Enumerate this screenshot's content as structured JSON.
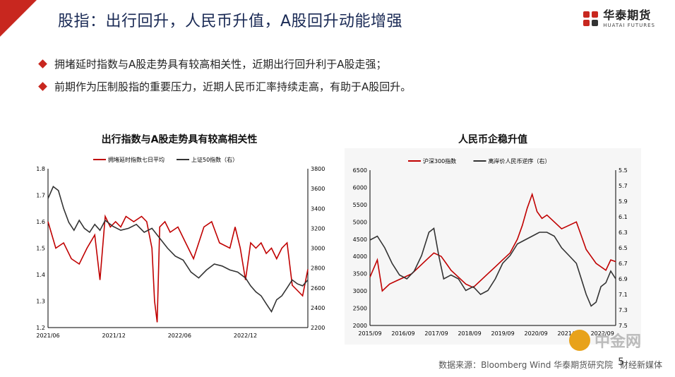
{
  "header": {
    "title": "股指：出行回升，人民币升值，A股回升动能增强",
    "logo_cn": "华泰期货",
    "logo_en": "HUATAI FUTURES"
  },
  "bullets": [
    "拥堵延时指数与A股走势具有较高相关性，近期出行回升利于A股走强；",
    "前期作为压制股指的重要压力，近期人民币汇率持续走高，有助于A股回升。"
  ],
  "chart_data": [
    {
      "type": "line",
      "title": "出行指数与A股走势具有较高相关性",
      "legend_position": "top",
      "x_ticks": [
        "2021/06",
        "2021/12",
        "2022/06",
        "2022/12"
      ],
      "y_left": {
        "ticks": [
          "1.8",
          "1.7",
          "1.6",
          "1.5",
          "1.4",
          "1.3",
          "1.2"
        ],
        "range": [
          1.2,
          1.8
        ]
      },
      "y_right": {
        "ticks": [
          "3800",
          "3600",
          "3400",
          "3200",
          "3000",
          "2800",
          "2600",
          "2400",
          "2200"
        ],
        "range": [
          2200,
          3800
        ]
      },
      "series": [
        {
          "name": "拥堵延时指数七日平均",
          "axis": "left",
          "color": "#c00000",
          "x": [
            0,
            0.03,
            0.06,
            0.09,
            0.12,
            0.15,
            0.18,
            0.2,
            0.22,
            0.24,
            0.26,
            0.28,
            0.3,
            0.33,
            0.36,
            0.38,
            0.4,
            0.41,
            0.42,
            0.43,
            0.45,
            0.47,
            0.5,
            0.53,
            0.56,
            0.6,
            0.63,
            0.66,
            0.7,
            0.72,
            0.74,
            0.76,
            0.78,
            0.8,
            0.82,
            0.84,
            0.86,
            0.88,
            0.9,
            0.92,
            0.94,
            0.96,
            0.98,
            1.0
          ],
          "values": [
            1.6,
            1.5,
            1.52,
            1.46,
            1.44,
            1.5,
            1.55,
            1.38,
            1.62,
            1.58,
            1.6,
            1.58,
            1.62,
            1.6,
            1.62,
            1.6,
            1.5,
            1.3,
            1.22,
            1.58,
            1.6,
            1.56,
            1.58,
            1.52,
            1.46,
            1.58,
            1.6,
            1.52,
            1.5,
            1.58,
            1.5,
            1.38,
            1.52,
            1.5,
            1.52,
            1.48,
            1.5,
            1.46,
            1.5,
            1.52,
            1.36,
            1.34,
            1.32,
            1.42
          ]
        },
        {
          "name": "上证50指数（右）",
          "axis": "right",
          "color": "#333333",
          "x": [
            0,
            0.02,
            0.04,
            0.06,
            0.08,
            0.1,
            0.12,
            0.14,
            0.16,
            0.18,
            0.2,
            0.22,
            0.25,
            0.28,
            0.31,
            0.34,
            0.37,
            0.4,
            0.43,
            0.46,
            0.49,
            0.52,
            0.55,
            0.58,
            0.61,
            0.64,
            0.67,
            0.7,
            0.73,
            0.76,
            0.78,
            0.8,
            0.82,
            0.84,
            0.86,
            0.88,
            0.9,
            0.92,
            0.94,
            0.96,
            0.98,
            1.0
          ],
          "values": [
            3500,
            3620,
            3580,
            3400,
            3260,
            3180,
            3280,
            3200,
            3160,
            3240,
            3180,
            3280,
            3220,
            3180,
            3200,
            3240,
            3160,
            3200,
            3100,
            3000,
            2920,
            2880,
            2760,
            2700,
            2780,
            2840,
            2820,
            2780,
            2760,
            2700,
            2620,
            2560,
            2520,
            2440,
            2360,
            2480,
            2520,
            2600,
            2680,
            2640,
            2620,
            2680
          ]
        }
      ]
    },
    {
      "type": "line",
      "title": "人民币企稳升值",
      "legend_position": "top",
      "x_ticks": [
        "2015/09",
        "2016/09",
        "2017/09",
        "2018/09",
        "2019/09",
        "2020/09",
        "2021/09",
        "2022/09"
      ],
      "y_left": {
        "ticks": [
          "6500",
          "6000",
          "5500",
          "5000",
          "4500",
          "4000",
          "3500",
          "3000",
          "2500",
          "2000"
        ],
        "range": [
          2000,
          6500
        ]
      },
      "y_right": {
        "ticks": [
          "5.5",
          "5.7",
          "5.9",
          "6.1",
          "6.3",
          "6.5",
          "6.7",
          "6.9",
          "7.1",
          "7.3",
          "7.5"
        ],
        "range": [
          5.5,
          7.5
        ]
      },
      "series": [
        {
          "name": "沪深300指数",
          "axis": "left",
          "color": "#c00000",
          "x": [
            0,
            0.03,
            0.05,
            0.08,
            0.11,
            0.14,
            0.17,
            0.2,
            0.23,
            0.26,
            0.29,
            0.31,
            0.33,
            0.36,
            0.39,
            0.42,
            0.45,
            0.48,
            0.51,
            0.54,
            0.57,
            0.6,
            0.62,
            0.64,
            0.66,
            0.68,
            0.7,
            0.72,
            0.75,
            0.78,
            0.81,
            0.84,
            0.86,
            0.88,
            0.9,
            0.92,
            0.94,
            0.96,
            0.98,
            1.0
          ],
          "values": [
            3400,
            3900,
            3000,
            3200,
            3300,
            3400,
            3500,
            3700,
            3900,
            4100,
            4000,
            3800,
            3600,
            3400,
            3200,
            3100,
            3300,
            3500,
            3700,
            3900,
            4100,
            4500,
            4900,
            5400,
            5800,
            5300,
            5100,
            5200,
            5000,
            4800,
            4900,
            5000,
            4600,
            4200,
            4000,
            3800,
            3700,
            3600,
            3900,
            3850
          ]
        },
        {
          "name": "离岸价人民币逆序（右）",
          "axis": "right",
          "color": "#333333",
          "x": [
            0,
            0.03,
            0.06,
            0.09,
            0.12,
            0.15,
            0.18,
            0.21,
            0.24,
            0.26,
            0.28,
            0.3,
            0.33,
            0.36,
            0.39,
            0.42,
            0.45,
            0.48,
            0.51,
            0.54,
            0.57,
            0.6,
            0.63,
            0.66,
            0.69,
            0.72,
            0.75,
            0.78,
            0.81,
            0.84,
            0.86,
            0.88,
            0.9,
            0.92,
            0.94,
            0.96,
            0.98,
            1.0
          ],
          "values": [
            6.4,
            6.35,
            6.5,
            6.7,
            6.85,
            6.9,
            6.8,
            6.6,
            6.3,
            6.25,
            6.6,
            6.9,
            6.85,
            6.9,
            7.05,
            7.0,
            7.1,
            7.05,
            6.9,
            6.7,
            6.6,
            6.45,
            6.4,
            6.35,
            6.3,
            6.3,
            6.35,
            6.5,
            6.6,
            6.7,
            6.9,
            7.1,
            7.25,
            7.2,
            7.0,
            6.95,
            6.8,
            6.9
          ]
        }
      ]
    }
  ],
  "footer": {
    "source": "数据来源：Bloomberg Wind  华泰期货研究院",
    "page": "5",
    "media_logo": "中金网",
    "media_sub": "财经新媒体"
  },
  "colors": {
    "accent": "#c8271f",
    "title": "#1a2a55"
  }
}
